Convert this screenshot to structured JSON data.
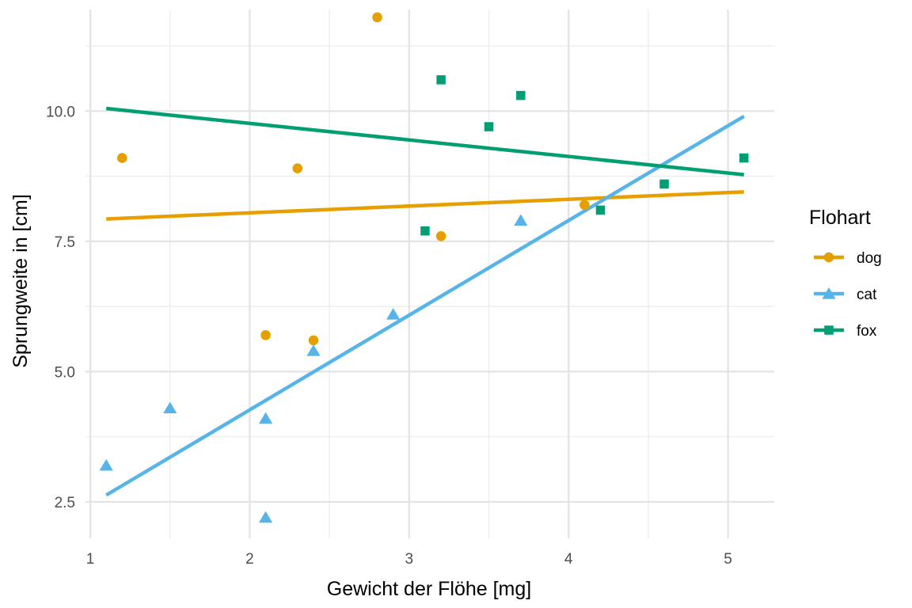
{
  "chart_data": {
    "type": "scatter",
    "xlabel": "Gewicht der Flöhe [mg]",
    "ylabel": "Sprungweite in [cm]",
    "xlim": [
      0.97,
      5.29
    ],
    "ylim": [
      1.8,
      11.95
    ],
    "x_ticks": [
      1,
      2,
      3,
      4,
      5
    ],
    "x_tick_labels": [
      "1",
      "2",
      "3",
      "4",
      "5"
    ],
    "y_ticks": [
      2.5,
      5.0,
      7.5,
      10.0
    ],
    "y_tick_labels": [
      "2.5",
      "5.0",
      "7.5",
      "10.0"
    ],
    "grid": true,
    "legend": {
      "title": "Flohart",
      "position": "right"
    },
    "series": [
      {
        "name": "dog",
        "color": "#E69F00",
        "shape": "circle",
        "points": [
          [
            1.2,
            9.1
          ],
          [
            2.1,
            5.7
          ],
          [
            2.3,
            8.9
          ],
          [
            2.4,
            5.6
          ],
          [
            2.8,
            11.8
          ],
          [
            3.2,
            7.6
          ],
          [
            4.1,
            8.2
          ]
        ],
        "fit": [
          [
            1.1,
            7.93
          ],
          [
            5.1,
            8.45
          ]
        ]
      },
      {
        "name": "cat",
        "color": "#56B4E9",
        "shape": "triangle",
        "points": [
          [
            1.1,
            3.2
          ],
          [
            1.5,
            4.3
          ],
          [
            2.1,
            4.1
          ],
          [
            2.1,
            2.2
          ],
          [
            2.4,
            5.4
          ],
          [
            2.9,
            6.1
          ],
          [
            3.7,
            7.9
          ]
        ],
        "fit": [
          [
            1.1,
            2.63
          ],
          [
            5.1,
            9.9
          ]
        ]
      },
      {
        "name": "fox",
        "color": "#009E73",
        "shape": "square",
        "points": [
          [
            3.1,
            7.7
          ],
          [
            3.2,
            10.6
          ],
          [
            3.5,
            9.7
          ],
          [
            3.7,
            10.3
          ],
          [
            4.2,
            8.1
          ],
          [
            4.6,
            8.6
          ],
          [
            5.1,
            9.1
          ]
        ],
        "fit": [
          [
            1.1,
            10.05
          ],
          [
            5.1,
            8.78
          ]
        ]
      }
    ]
  }
}
